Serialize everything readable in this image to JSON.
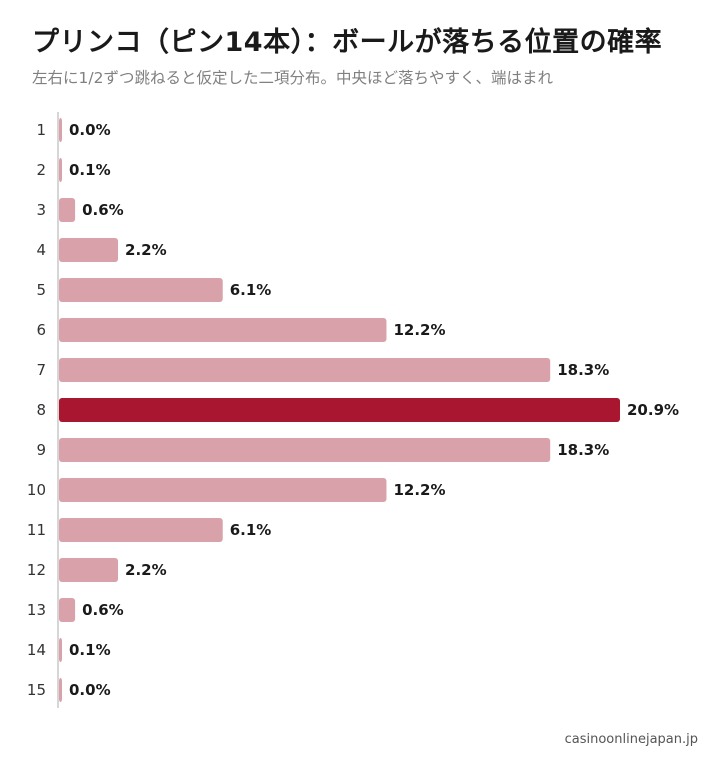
{
  "title": "プリンコ（ピン14本）：ボールが落ちる位置の確率",
  "subtitle": "左右に1/2ずつ跳ねると仮定した二項分布。中央ほど落ちやすく、端はまれ",
  "source": "casinoonlinejapan.jp",
  "colors": {
    "bar": "#d9a1aa",
    "highlight": "#a8162f",
    "axis": "#c8c8c8",
    "value_text": "#1a1a1a",
    "category_text": "#333333"
  },
  "chart_data": {
    "type": "bar",
    "orientation": "horizontal",
    "categories": [
      "1",
      "2",
      "3",
      "4",
      "5",
      "6",
      "7",
      "8",
      "9",
      "10",
      "11",
      "12",
      "13",
      "14",
      "15"
    ],
    "values": [
      0.0,
      0.1,
      0.6,
      2.2,
      6.1,
      12.2,
      18.3,
      20.9,
      18.3,
      12.2,
      6.1,
      2.2,
      0.6,
      0.1,
      0.0
    ],
    "value_labels": [
      "0.0%",
      "0.1%",
      "0.6%",
      "2.2%",
      "6.1%",
      "12.2%",
      "18.3%",
      "20.9%",
      "18.3%",
      "12.2%",
      "6.1%",
      "2.2%",
      "0.6%",
      "0.1%",
      "0.0%"
    ],
    "highlight_index": 7,
    "unit": "%",
    "xlim": [
      0,
      20.9
    ],
    "grid": false,
    "legend": "none"
  }
}
